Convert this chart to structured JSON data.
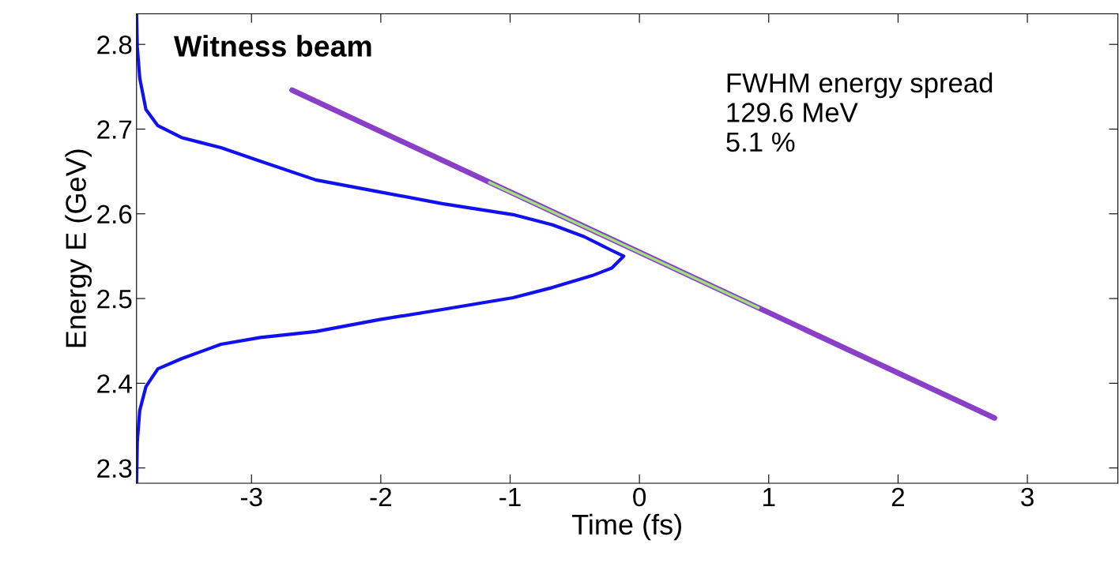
{
  "chart_data": {
    "type": "line",
    "xlabel": "Time (fs)",
    "ylabel": "Energy E (GeV)",
    "xlim": [
      -3.889,
      3.7
    ],
    "ylim": [
      2.282,
      2.836
    ],
    "xticks": [
      -3,
      -2,
      -1,
      0,
      1,
      2,
      3
    ],
    "yticks": [
      2.3,
      2.4,
      2.5,
      2.6,
      2.7,
      2.8
    ],
    "grid": false,
    "legend": false,
    "marker": "none",
    "line_style": "solid",
    "annotations": [
      "Witness beam",
      "FWHM energy spread\n129.6 MeV\n5.1 %"
    ],
    "series": [
      {
        "color": "#1010f0",
        "x": [
          -3.889,
          -3.883,
          -3.864,
          -3.816,
          -3.724,
          -3.541,
          -3.236,
          -2.93,
          -2.503,
          -2.015,
          -1.526,
          -0.977,
          -0.672,
          -0.427,
          -0.244,
          -0.122,
          -0.214,
          -0.366,
          -0.672,
          -0.977,
          -1.526,
          -2.015,
          -2.503,
          -2.93,
          -3.236,
          -3.541,
          -3.724,
          -3.816,
          -3.864,
          -3.883,
          -3.889
        ],
        "values": [
          2.836,
          2.797,
          2.76,
          2.723,
          2.704,
          2.69,
          2.678,
          2.662,
          2.64,
          2.626,
          2.612,
          2.599,
          2.587,
          2.573,
          2.559,
          2.55,
          2.536,
          2.527,
          2.513,
          2.501,
          2.487,
          2.475,
          2.461,
          2.454,
          2.446,
          2.429,
          2.417,
          2.396,
          2.368,
          2.331,
          2.282
        ]
      },
      {
        "color": "#8a3fc8",
        "x": [
          -2.686,
          2.746
        ],
        "values": [
          2.746,
          2.359
        ]
      },
      {
        "color": "#9ee07a",
        "x": [
          -1.16,
          0.92
        ],
        "values": [
          2.637,
          2.489
        ]
      }
    ]
  }
}
